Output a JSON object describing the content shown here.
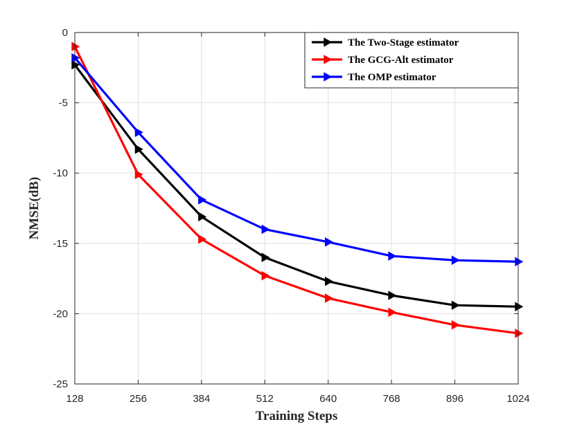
{
  "chart_data": {
    "type": "line",
    "title": "",
    "xlabel": "Training Steps",
    "ylabel": "NMSE(dB)",
    "x": [
      128,
      256,
      384,
      512,
      640,
      768,
      896,
      1024
    ],
    "x_tick_labels": [
      "128",
      "256",
      "384",
      "512",
      "640",
      "768",
      "896",
      "1024"
    ],
    "y_tick_values": [
      0,
      -5,
      -10,
      -15,
      -20,
      -25
    ],
    "y_tick_labels": [
      "0",
      "-5",
      "-10",
      "-15",
      "-20",
      "-25"
    ],
    "xlim": [
      128,
      1024
    ],
    "ylim": [
      -25,
      0
    ],
    "grid": true,
    "legend_position": "top-right",
    "series": [
      {
        "name": "The Two-Stage estimator",
        "color": "#000000",
        "marker": "triangle-right",
        "values": [
          -2.3,
          -8.3,
          -13.1,
          -16.0,
          -17.7,
          -18.7,
          -19.4,
          -19.5
        ]
      },
      {
        "name": "The GCG-Alt estimator",
        "color": "#ff0000",
        "marker": "triangle-right",
        "values": [
          -1.0,
          -10.1,
          -14.7,
          -17.3,
          -18.9,
          -19.9,
          -20.8,
          -21.4
        ]
      },
      {
        "name": "The OMP estimator",
        "color": "#0000ff",
        "marker": "triangle-right",
        "values": [
          -1.8,
          -7.1,
          -11.9,
          -14.0,
          -14.9,
          -15.9,
          -16.2,
          -16.3
        ]
      }
    ]
  }
}
